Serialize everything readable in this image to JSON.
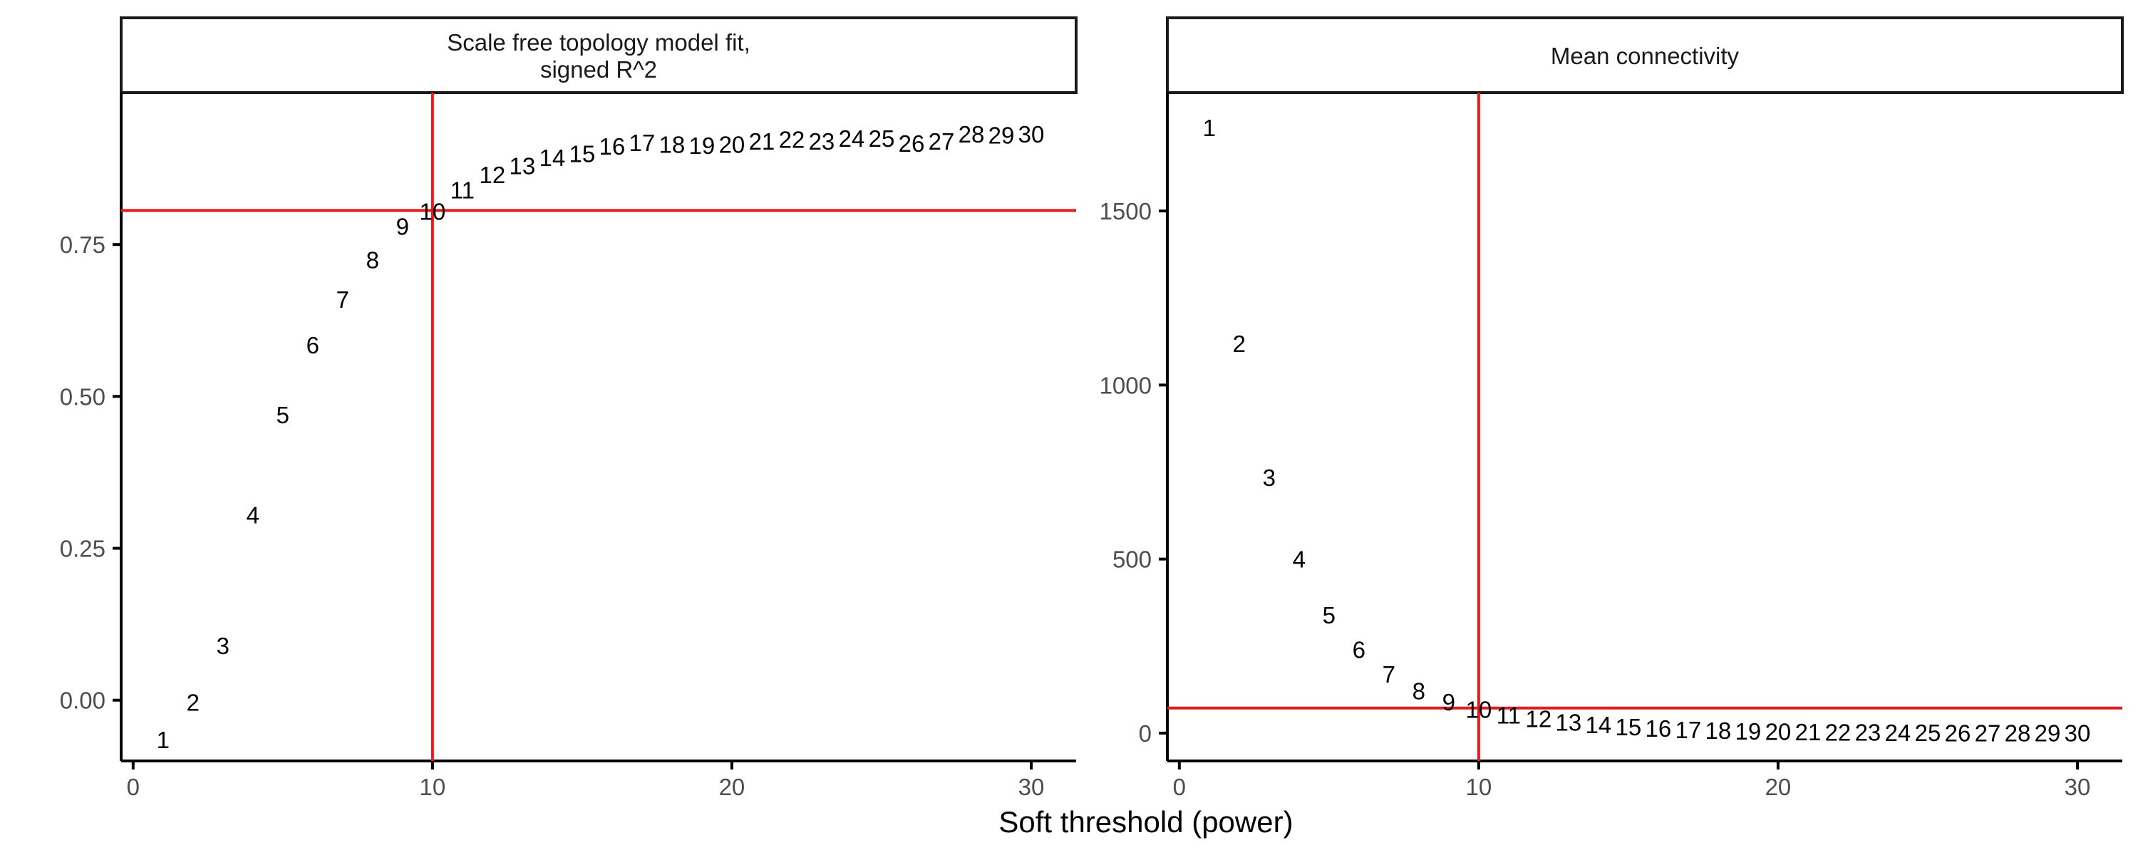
{
  "chart_data": {
    "type": "scatter",
    "xlabel": "Soft threshold (power)",
    "panels": [
      {
        "title_lines": [
          "Scale free topology model fit,",
          "signed R^2"
        ],
        "xlim": [
          -0.4,
          31.5
        ],
        "ylim": [
          -0.1,
          1.0
        ],
        "xticks": [
          0,
          10,
          20,
          30
        ],
        "yticks": [
          0.0,
          0.25,
          0.5,
          0.75
        ],
        "ytick_labels": [
          "0.00",
          "0.25",
          "0.50",
          "0.75"
        ],
        "xtick_labels": [
          "0",
          "10",
          "20",
          "30"
        ],
        "hline": 0.806,
        "vline": 10,
        "labels": [
          "1",
          "2",
          "3",
          "4",
          "5",
          "6",
          "7",
          "8",
          "9",
          "10",
          "11",
          "12",
          "13",
          "14",
          "15",
          "16",
          "17",
          "18",
          "19",
          "20",
          "21",
          "22",
          "23",
          "24",
          "25",
          "26",
          "27",
          "28",
          "29",
          "30"
        ],
        "x": [
          1,
          2,
          3,
          4,
          5,
          6,
          7,
          8,
          9,
          10,
          11,
          12,
          13,
          14,
          15,
          16,
          17,
          18,
          19,
          20,
          21,
          22,
          23,
          24,
          25,
          26,
          27,
          28,
          29,
          30
        ],
        "y": [
          -0.065,
          -0.003,
          0.09,
          0.305,
          0.47,
          0.585,
          0.66,
          0.725,
          0.78,
          0.805,
          0.84,
          0.865,
          0.88,
          0.893,
          0.9,
          0.912,
          0.918,
          0.915,
          0.913,
          0.915,
          0.92,
          0.923,
          0.92,
          0.925,
          0.925,
          0.917,
          0.92,
          0.932,
          0.93,
          0.932
        ]
      },
      {
        "title_lines": [
          "Mean connectivity"
        ],
        "xlim": [
          -0.4,
          31.5
        ],
        "ylim": [
          -80,
          1840
        ],
        "xticks": [
          0,
          10,
          20,
          30
        ],
        "yticks": [
          0,
          500,
          1000,
          1500
        ],
        "ytick_labels": [
          "0",
          "500",
          "1000",
          "1500"
        ],
        "xtick_labels": [
          "0",
          "10",
          "20",
          "30"
        ],
        "hline": 72,
        "vline": 10,
        "labels": [
          "1",
          "2",
          "3",
          "4",
          "5",
          "6",
          "7",
          "8",
          "9",
          "10",
          "11",
          "12",
          "13",
          "14",
          "15",
          "16",
          "17",
          "18",
          "19",
          "20",
          "21",
          "22",
          "23",
          "24",
          "25",
          "26",
          "27",
          "28",
          "29",
          "30"
        ],
        "x": [
          1,
          2,
          3,
          4,
          5,
          6,
          7,
          8,
          9,
          10,
          11,
          12,
          13,
          14,
          15,
          16,
          17,
          18,
          19,
          20,
          21,
          22,
          23,
          24,
          25,
          26,
          27,
          28,
          29,
          30
        ],
        "y": [
          1740,
          1120,
          735,
          500,
          340,
          240,
          170,
          122,
          90,
          68,
          52,
          42,
          32,
          24,
          18,
          14,
          10,
          8,
          6,
          5,
          4,
          3,
          2.5,
          2,
          1.5,
          1,
          1,
          0.8,
          0.6,
          0.5
        ]
      }
    ],
    "colors": {
      "reference_lines": "#e41a1c",
      "axis": "#000000",
      "tick_text": "#4d4d4d",
      "point_text": "#000000",
      "background": "#ffffff"
    }
  }
}
